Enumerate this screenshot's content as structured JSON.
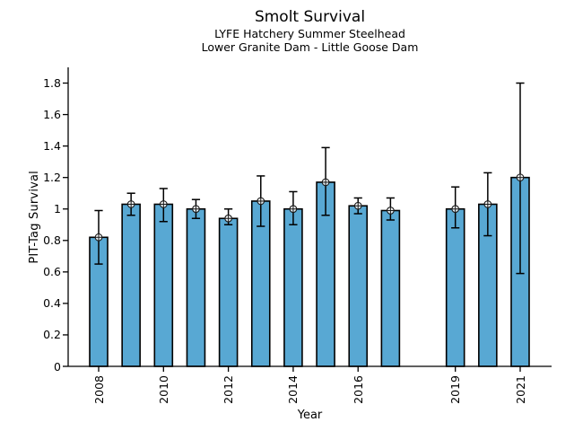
{
  "chart_data": {
    "type": "bar",
    "title": "Smolt Survival",
    "subtitle1": "LYFE Hatchery Summer Steelhead",
    "subtitle2": "Lower Granite Dam - Little Goose Dam",
    "xlabel": "Year",
    "ylabel": "PIT-Tag Survival",
    "ylim": [
      0,
      1.9
    ],
    "yticks": [
      0,
      0.2,
      0.4,
      0.6,
      0.8,
      1.0,
      1.2,
      1.4,
      1.6,
      1.8
    ],
    "ytick_labels": [
      "0",
      "0.2",
      "0.4",
      "0.6",
      "0.8",
      "1",
      "1.2",
      "1.4",
      "1.6",
      "1.8"
    ],
    "xtick_years": [
      2008,
      2010,
      2012,
      2014,
      2016,
      2019,
      2021
    ],
    "x_range": [
      2008,
      2021
    ],
    "grid": false,
    "legend": null,
    "bar_color": "#58a8d3",
    "bar_edge_color": "#000000",
    "errorbar_color": "#000000",
    "marker": "circle-plus",
    "marker_face_color": "#ffffff",
    "series": [
      {
        "name": "PIT-Tag Survival",
        "points": [
          {
            "year": 2008,
            "value": 0.82,
            "lo": 0.65,
            "hi": 0.99
          },
          {
            "year": 2009,
            "value": 1.03,
            "lo": 0.96,
            "hi": 1.1
          },
          {
            "year": 2010,
            "value": 1.03,
            "lo": 0.92,
            "hi": 1.13
          },
          {
            "year": 2011,
            "value": 1.0,
            "lo": 0.94,
            "hi": 1.06
          },
          {
            "year": 2012,
            "value": 0.94,
            "lo": 0.9,
            "hi": 1.0
          },
          {
            "year": 2013,
            "value": 1.05,
            "lo": 0.89,
            "hi": 1.21
          },
          {
            "year": 2014,
            "value": 1.0,
            "lo": 0.9,
            "hi": 1.11
          },
          {
            "year": 2015,
            "value": 1.17,
            "lo": 0.96,
            "hi": 1.39
          },
          {
            "year": 2016,
            "value": 1.02,
            "lo": 0.97,
            "hi": 1.07
          },
          {
            "year": 2017,
            "value": 0.99,
            "lo": 0.93,
            "hi": 1.07
          },
          {
            "year": 2019,
            "value": 1.0,
            "lo": 0.88,
            "hi": 1.14
          },
          {
            "year": 2020,
            "value": 1.03,
            "lo": 0.83,
            "hi": 1.23
          },
          {
            "year": 2021,
            "value": 1.2,
            "lo": 0.59,
            "hi": 1.8
          }
        ]
      }
    ]
  }
}
